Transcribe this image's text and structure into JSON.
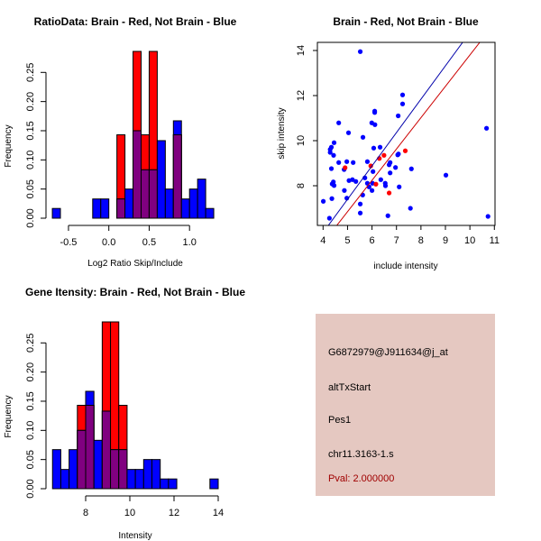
{
  "colors": {
    "red": "#ff0000",
    "blue": "#0000ff",
    "overlap": "#800080",
    "panel": "#e5c8c1",
    "pval_text": "#a00000"
  },
  "chart_data": [
    {
      "type": "bar",
      "title": "RatioData: Brain - Red, Not Brain - Blue",
      "xlabel": "Log2 Ratio Skip/Include",
      "ylabel": "Frequency",
      "bin_start": -0.7,
      "bin_width": 0.1,
      "xticks": [
        -0.5,
        0.0,
        0.5,
        1.0
      ],
      "xtick_labels": [
        "-0.5",
        "0.0",
        "0.5",
        "1.0"
      ],
      "yticks": [
        0,
        0.05,
        0.1,
        0.15,
        0.2,
        0.25
      ],
      "ytick_labels": [
        "0.00",
        "0.05",
        "0.10",
        "0.15",
        "0.20",
        "0.25"
      ],
      "series": [
        {
          "name": "Not Brain",
          "color": "blue",
          "values": [
            0.0167,
            0,
            0,
            0,
            0,
            0.033,
            0.033,
            0,
            0.033,
            0.05,
            0.15,
            0.083,
            0.083,
            0.133,
            0.05,
            0.167,
            0.033,
            0.05,
            0.067,
            0.0167
          ]
        },
        {
          "name": "Brain",
          "color": "red",
          "values": [
            0,
            0,
            0,
            0,
            0,
            0,
            0,
            0,
            0.143,
            0,
            0.286,
            0.143,
            0.286,
            0,
            0,
            0.143,
            0,
            0,
            0,
            0
          ]
        }
      ]
    },
    {
      "type": "scatter",
      "title": "Brain - Red, Not Brain - Blue",
      "xlabel": "include intensity",
      "ylabel": "skip intensity",
      "xlim": [
        3.78,
        11.1
      ],
      "ylim": [
        6.24,
        14.36
      ],
      "xticks": [
        4,
        5,
        6,
        7,
        8,
        9,
        10,
        11
      ],
      "xtick_labels": [
        "4",
        "5",
        "6",
        "7",
        "8",
        "9",
        "10",
        "11"
      ],
      "yticks": [
        8,
        10,
        12,
        14
      ],
      "ytick_labels": [
        "8",
        "10",
        "12",
        "14"
      ],
      "series": [
        {
          "name": "Not Brain",
          "color": "blue",
          "points": [
            [
              5.52,
              13.95
            ],
            [
              7.25,
              12.03
            ],
            [
              7.25,
              11.63
            ],
            [
              6.11,
              11.31
            ],
            [
              6.11,
              11.25
            ],
            [
              7.07,
              11.1
            ],
            [
              4.64,
              10.79
            ],
            [
              5.99,
              10.79
            ],
            [
              6.12,
              10.71
            ],
            [
              5.04,
              10.35
            ],
            [
              5.63,
              10.15
            ],
            [
              10.68,
              10.55
            ],
            [
              4.45,
              9.91
            ],
            [
              4.34,
              9.71
            ],
            [
              4.29,
              9.61
            ],
            [
              4.29,
              9.48
            ],
            [
              4.43,
              9.35
            ],
            [
              6.07,
              9.67
            ],
            [
              6.33,
              9.71
            ],
            [
              7.08,
              9.41
            ],
            [
              7.05,
              9.37
            ],
            [
              4.64,
              9.03
            ],
            [
              4.97,
              9.07
            ],
            [
              5.23,
              9.03
            ],
            [
              5.81,
              9.07
            ],
            [
              6.74,
              9.03
            ],
            [
              6.7,
              8.93
            ],
            [
              6.96,
              8.81
            ],
            [
              7.61,
              8.75
            ],
            [
              4.34,
              8.76
            ],
            [
              4.86,
              8.72
            ],
            [
              6.04,
              8.63
            ],
            [
              6.74,
              8.57
            ],
            [
              9.02,
              8.47
            ],
            [
              4.42,
              8.17
            ],
            [
              4.37,
              8.08
            ],
            [
              4.45,
              8.01
            ],
            [
              5.06,
              8.23
            ],
            [
              5.2,
              8.27
            ],
            [
              5.34,
              8.19
            ],
            [
              5.71,
              8.35
            ],
            [
              5.81,
              8.11
            ],
            [
              6.02,
              8.11
            ],
            [
              6.36,
              8.27
            ],
            [
              6.54,
              8.11
            ],
            [
              6.55,
              8.0
            ],
            [
              5.88,
              7.95
            ],
            [
              7.11,
              7.95
            ],
            [
              4.87,
              7.79
            ],
            [
              6.0,
              7.79
            ],
            [
              5.62,
              7.59
            ],
            [
              4.97,
              7.45
            ],
            [
              4.36,
              7.43
            ],
            [
              4.01,
              7.31
            ],
            [
              5.52,
              7.19
            ],
            [
              7.57,
              7.0
            ],
            [
              5.52,
              6.79
            ],
            [
              6.65,
              6.67
            ],
            [
              4.26,
              6.56
            ],
            [
              10.74,
              6.64
            ]
          ]
        },
        {
          "name": "Brain",
          "color": "red",
          "points": [
            [
              7.36,
              9.55
            ],
            [
              6.49,
              9.35
            ],
            [
              6.3,
              9.21
            ],
            [
              5.95,
              8.88
            ],
            [
              4.9,
              8.8
            ],
            [
              6.16,
              8.07
            ],
            [
              6.7,
              7.68
            ]
          ]
        }
      ],
      "fit_lines": [
        {
          "name": "Not Brain fit",
          "color": "blue",
          "intercept": 0.0,
          "slope": 1.48
        },
        {
          "name": "Brain fit",
          "color": "red",
          "intercept": -0.1,
          "slope": 1.39
        }
      ]
    },
    {
      "type": "bar",
      "title": "Gene Itensity: Brain - Red, Not Brain - Blue",
      "xlabel": "Intensity",
      "ylabel": "Frequency",
      "bin_start": 6.5,
      "bin_width": 0.375,
      "xticks": [
        8,
        10,
        12,
        14
      ],
      "xtick_labels": [
        "8",
        "10",
        "12",
        "14"
      ],
      "yticks": [
        0,
        0.05,
        0.1,
        0.15,
        0.2,
        0.25
      ],
      "ytick_labels": [
        "0.00",
        "0.05",
        "0.10",
        "0.15",
        "0.20",
        "0.25"
      ],
      "series": [
        {
          "name": "Not Brain",
          "color": "blue",
          "values": [
            0.067,
            0.033,
            0.067,
            0.1,
            0.167,
            0.083,
            0.133,
            0.067,
            0.067,
            0.033,
            0.033,
            0.05,
            0.05,
            0.0167,
            0.0167,
            0,
            0,
            0,
            0,
            0.0167
          ]
        },
        {
          "name": "Brain",
          "color": "red",
          "values": [
            0,
            0,
            0,
            0.143,
            0.143,
            0,
            0.286,
            0.286,
            0.143,
            0,
            0,
            0,
            0,
            0,
            0,
            0,
            0,
            0,
            0,
            0
          ]
        }
      ]
    }
  ],
  "info_panel": {
    "probe_id": "G6872979@J911634@j_at",
    "event_type": "altTxStart",
    "gene": "Pes1",
    "location": "chr11.3163-1.s",
    "pval": "Pval: 2.000000"
  }
}
